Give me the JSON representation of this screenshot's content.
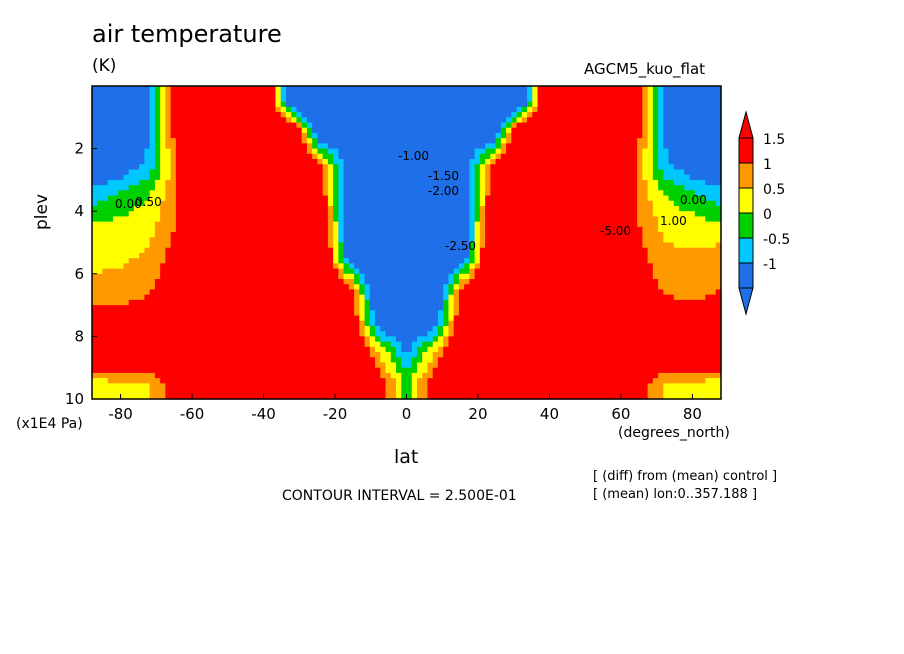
{
  "header": {
    "title": "air temperature",
    "units": "(K)",
    "model": "AGCM5_kuo_flat"
  },
  "footer": {
    "contour_interval": "CONTOUR INTERVAL = 2.500E-01",
    "note1": "[ (diff) from (mean) control ]",
    "note2": "[ (mean) lon:0..357.188 ]"
  },
  "colors": {
    "below_min": "#1f6fe8",
    "ranges": [
      "#1f6fe8",
      "#00c8ff",
      "#00d000",
      "#ffff00",
      "#ff9900",
      "#ff0000"
    ]
  },
  "chart_data": {
    "type": "heatmap",
    "title": "air temperature",
    "subtitle": "AGCM5_kuo_flat",
    "xlabel": "lat",
    "ylabel": "plev",
    "x_units": "(degrees_north)",
    "y_units": "(x1E4 Pa)",
    "xlim": [
      -88,
      88
    ],
    "ylim": [
      10,
      0
    ],
    "x_ticks": [
      -80,
      -60,
      -40,
      -20,
      0,
      20,
      40,
      60,
      80
    ],
    "y_ticks": [
      2,
      4,
      6,
      8,
      10
    ],
    "colorbar": {
      "levels": [
        1.5,
        1,
        0.5,
        0,
        -0.5,
        -1
      ],
      "labels": [
        "1.5",
        "1",
        "0.5",
        "0",
        "-0.5",
        "-1"
      ],
      "extend": "both"
    },
    "contour_labels": [
      "-1.00",
      "-1.50",
      "-2.00",
      "-2.50",
      "0.00",
      "0.50",
      "1.00",
      "-5.00"
    ],
    "contour_interval": 0.25,
    "x": [
      -88,
      -80,
      -72,
      -64,
      -56,
      -48,
      -40,
      -32,
      -24,
      -16,
      -8,
      0,
      8,
      16,
      24,
      32,
      40,
      48,
      56,
      64,
      72,
      80,
      88
    ],
    "y": [
      0.5,
      1.5,
      2.5,
      3.5,
      4.5,
      5.5,
      6.5,
      7.5,
      8.5,
      9.5
    ],
    "z": [
      [
        -1.5,
        -1.4,
        -0.6,
        2.5,
        3,
        3,
        3,
        -1.5,
        -2,
        -2,
        -2,
        -2,
        -2,
        -2,
        -2,
        -1.5,
        3,
        3,
        3,
        2.5,
        -0.6,
        -1.4,
        -1.5
      ],
      [
        -1.3,
        -1.2,
        -0.6,
        2,
        3,
        3,
        3,
        3,
        -1.4,
        -1.2,
        -1.1,
        -1.1,
        -1.1,
        -1.2,
        -1.4,
        3,
        3,
        3,
        3,
        2,
        -0.6,
        -1.2,
        -1.3
      ],
      [
        -1.1,
        -1,
        -0.3,
        1.5,
        3,
        3,
        3,
        3,
        1.5,
        -1.2,
        -1.3,
        -1.5,
        -1.3,
        -1.2,
        1.5,
        3,
        3,
        3,
        3,
        1.5,
        -0.3,
        -1,
        -1.1
      ],
      [
        -0.3,
        0.1,
        0.5,
        1.5,
        3,
        3,
        3,
        3,
        2,
        -1.3,
        -2,
        -2.5,
        -2,
        -1.3,
        2,
        3,
        3,
        3,
        3,
        1.5,
        0.5,
        0.1,
        -0.3
      ],
      [
        0.6,
        0.7,
        0.8,
        1.6,
        3,
        3,
        3,
        3,
        2.5,
        -1.2,
        -2.3,
        -2.7,
        -2.3,
        -1.2,
        2.5,
        3,
        3,
        3,
        3,
        1.6,
        0.9,
        0.8,
        0.6
      ],
      [
        0.9,
        0.9,
        1.1,
        1.8,
        3,
        3,
        3,
        3,
        3,
        -1.1,
        -2,
        -2.4,
        -2,
        -1.1,
        3,
        3,
        3,
        3,
        3,
        1.8,
        1.1,
        1.1,
        1.3
      ],
      [
        1.1,
        1.2,
        1.4,
        2.2,
        3,
        3,
        3,
        3,
        3,
        2,
        -1.5,
        -2,
        -1.5,
        2,
        3,
        3,
        3,
        3,
        3,
        2.2,
        1.4,
        1.3,
        1.5
      ],
      [
        1.8,
        1.8,
        2,
        2.5,
        3,
        3,
        3,
        3,
        3,
        2.5,
        -1,
        -1.6,
        -1,
        2.5,
        3,
        3,
        3,
        3,
        3,
        2.5,
        2,
        1.8,
        1.8
      ],
      [
        2.5,
        2.5,
        2.5,
        3,
        3,
        3,
        3,
        3,
        3,
        3,
        1,
        -0.6,
        1,
        3,
        3,
        3,
        3,
        3,
        3,
        3,
        2.5,
        2.5,
        2.5
      ],
      [
        0.8,
        0.9,
        1,
        2,
        3,
        3,
        3,
        3,
        3,
        3,
        2,
        0.3,
        2,
        3,
        3,
        3,
        3,
        3,
        3,
        2,
        1,
        0.9,
        0.8
      ]
    ]
  }
}
